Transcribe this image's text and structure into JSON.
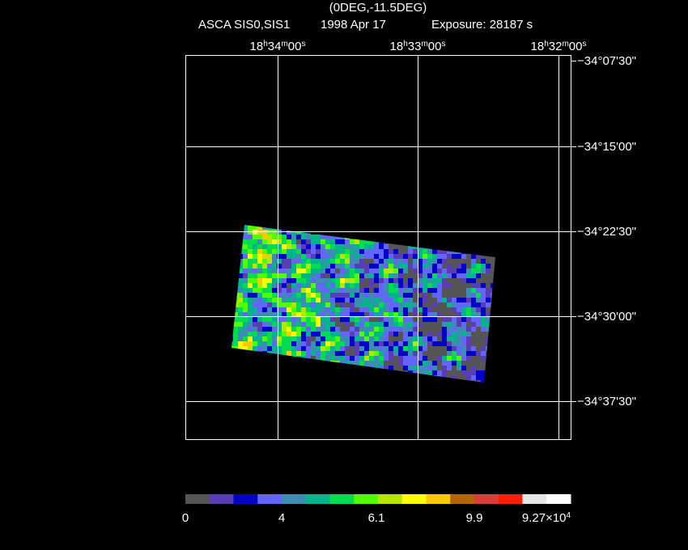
{
  "header": {
    "title": "(0DEG,-11.5DEG)",
    "instrument": "ASCA SIS0,SIS1",
    "date": "1998 Apr 17",
    "exposure": "Exposure: 28187 s"
  },
  "ra_labels": [
    [
      {
        "t": "18"
      },
      {
        "t": "h",
        "sup": true
      },
      {
        "t": "34"
      },
      {
        "t": "m",
        "sup": true
      },
      {
        "t": "00"
      },
      {
        "t": "s",
        "sup": true
      }
    ],
    [
      {
        "t": "18"
      },
      {
        "t": "h",
        "sup": true
      },
      {
        "t": "33"
      },
      {
        "t": "m",
        "sup": true
      },
      {
        "t": "00"
      },
      {
        "t": "s",
        "sup": true
      }
    ],
    [
      {
        "t": "18"
      },
      {
        "t": "h",
        "sup": true
      },
      {
        "t": "32"
      },
      {
        "t": "m",
        "sup": true
      },
      {
        "t": "00"
      },
      {
        "t": "s",
        "sup": true
      }
    ]
  ],
  "dec_labels": [
    "−34°07'30\"",
    "−34°15'00\"",
    "−34°22'30\"",
    "−34°30'00\"",
    "−34°37'30\""
  ],
  "colorbar_labels": [
    [
      {
        "t": "0"
      }
    ],
    [
      {
        "t": "4"
      }
    ],
    [
      {
        "t": "6.1"
      }
    ],
    [
      {
        "t": "9.9"
      }
    ],
    [
      {
        "t": "9.27×10"
      },
      {
        "t": "4",
        "sup": true
      }
    ]
  ]
}
